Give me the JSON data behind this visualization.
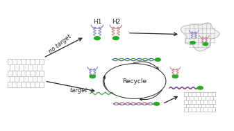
{
  "bg_color": "#ffffff",
  "go_color": "#aaaaaa",
  "hairpin_H1_color": "#8888cc",
  "hairpin_H2_color": "#cc8888",
  "dna_green_color": "#33aa33",
  "dna_blue_color": "#5555bb",
  "dna_red_color": "#bb5555",
  "dot_color": "#22aa22",
  "arrow_color": "#222222",
  "text_color": "#222222",
  "text_no_target": "no target",
  "text_target": "target",
  "text_recycle": "Recycle",
  "text_H1": "H1",
  "text_H2": "H2",
  "fig_w": 3.37,
  "fig_h": 1.89,
  "dpi": 100
}
